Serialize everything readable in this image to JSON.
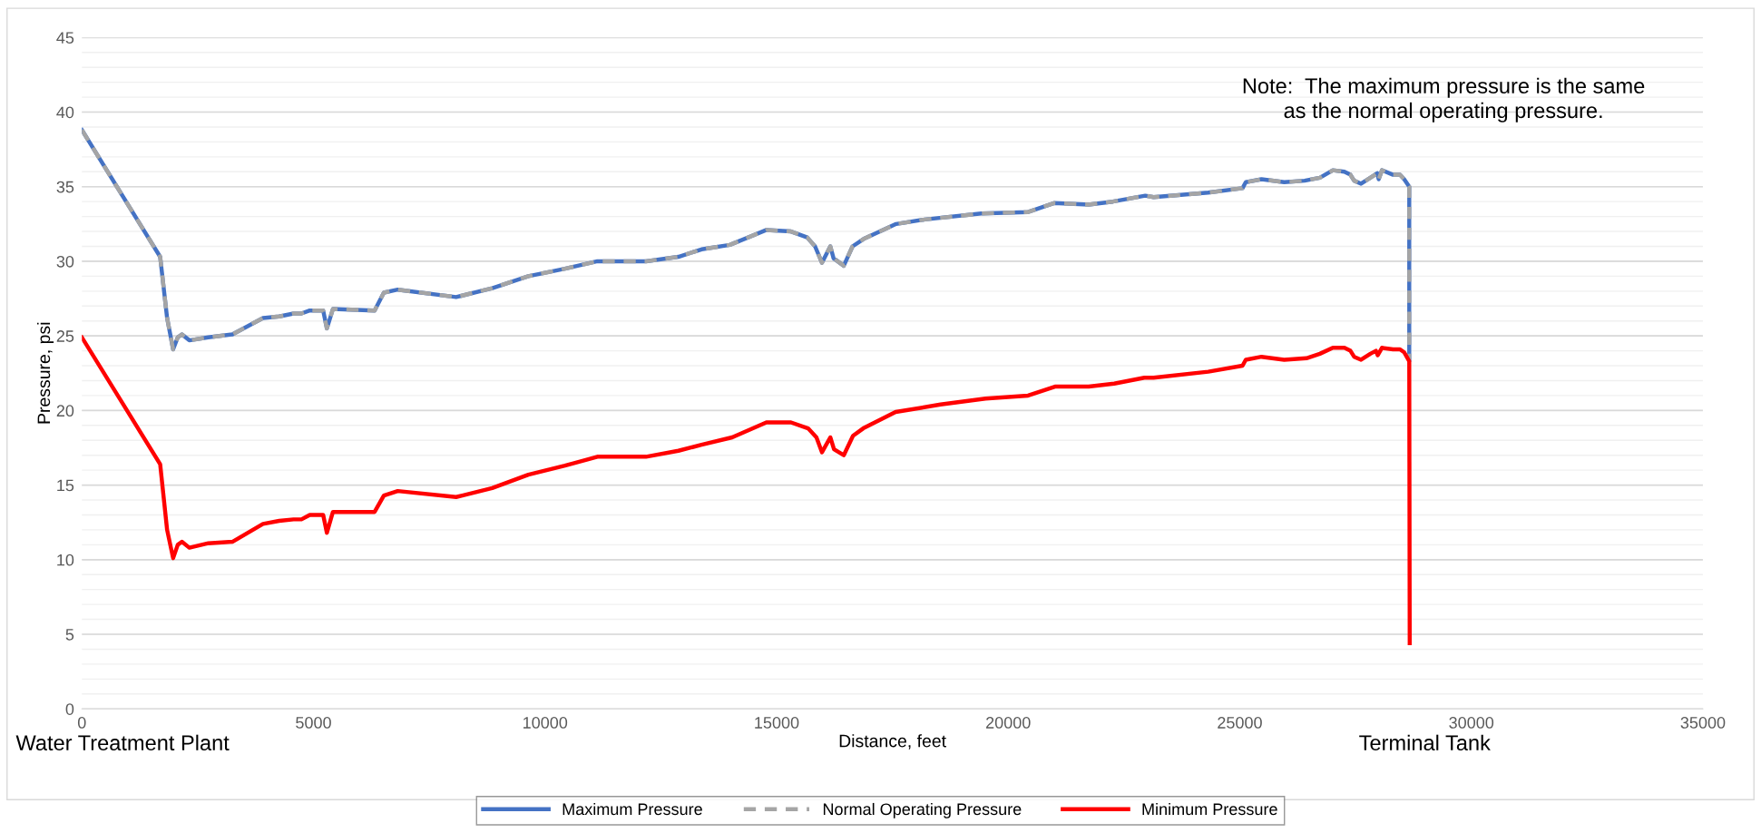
{
  "chart_data": {
    "type": "line",
    "xlabel": "Distance, feet",
    "ylabel": "Pressure, psi",
    "xlim": [
      0,
      35000
    ],
    "xticks": [
      0,
      5000,
      10000,
      15000,
      20000,
      25000,
      30000,
      35000
    ],
    "ylim": [
      0,
      45
    ],
    "yticks": [
      0,
      5,
      10,
      15,
      20,
      25,
      30,
      35,
      40,
      45
    ],
    "grid": "y",
    "legend": "bottom",
    "marker": "none",
    "annotations": [
      "Note:  The maximum pressure is the same\nas the normal operating pressure.",
      "Water Treatment Plant",
      "Terminal Tank"
    ],
    "series": [
      {
        "name": "Maximum Pressure",
        "color": "#4472c4",
        "line_style": "solid",
        "x": [
          0,
          1690,
          1840,
          1970,
          2070,
          2160,
          2320,
          2730,
          3250,
          3910,
          4260,
          4570,
          4740,
          4920,
          5210,
          5290,
          5420,
          6320,
          6520,
          6820,
          8080,
          8860,
          9640,
          10430,
          11130,
          12180,
          12880,
          13380,
          13990,
          14780,
          15310,
          15660,
          15830,
          15980,
          16160,
          16230,
          16450,
          16640,
          16880,
          17580,
          18200,
          19420,
          20430,
          20990,
          21740,
          22260,
          22960,
          23140,
          24320,
          25060,
          25130,
          25470,
          25960,
          26400,
          26730,
          27010,
          27260,
          27390,
          27470,
          27620,
          27820,
          27970,
          28000,
          28070,
          28310,
          28460,
          28550,
          28660,
          28660
        ],
        "values": [
          38.8,
          30.3,
          26.2,
          24.1,
          24.9,
          25.1,
          24.7,
          24.9,
          25.1,
          26.2,
          26.3,
          26.5,
          26.5,
          26.7,
          26.7,
          25.5,
          26.8,
          26.7,
          27.9,
          28.1,
          27.6,
          28.2,
          29.0,
          29.5,
          30.0,
          30.0,
          30.3,
          30.8,
          31.1,
          32.1,
          32.0,
          31.6,
          31.0,
          29.9,
          31.0,
          30.2,
          29.7,
          31.0,
          31.5,
          32.5,
          32.8,
          33.2,
          33.3,
          33.9,
          33.8,
          34.0,
          34.4,
          34.3,
          34.6,
          34.9,
          35.3,
          35.5,
          35.3,
          35.4,
          35.6,
          36.1,
          36.0,
          35.8,
          35.4,
          35.2,
          35.6,
          35.9,
          35.5,
          36.1,
          35.8,
          35.8,
          35.5,
          35.0,
          23.4
        ]
      },
      {
        "name": "Normal Operating Pressure",
        "color": "#a5a5a5",
        "line_style": "dashed",
        "x": [
          0,
          1690,
          1840,
          1970,
          2070,
          2160,
          2320,
          2730,
          3250,
          3910,
          4260,
          4570,
          4740,
          4920,
          5210,
          5290,
          5420,
          6320,
          6520,
          6820,
          8080,
          8860,
          9640,
          10430,
          11130,
          12180,
          12880,
          13380,
          13990,
          14780,
          15310,
          15660,
          15830,
          15980,
          16160,
          16230,
          16450,
          16640,
          16880,
          17580,
          18200,
          19420,
          20430,
          20990,
          21740,
          22260,
          22960,
          23140,
          24320,
          25060,
          25130,
          25470,
          25960,
          26400,
          26730,
          27010,
          27260,
          27390,
          27470,
          27620,
          27820,
          27970,
          28000,
          28070,
          28310,
          28460,
          28550,
          28660,
          28660
        ],
        "values": [
          38.8,
          30.3,
          26.2,
          24.1,
          24.9,
          25.1,
          24.7,
          24.9,
          25.1,
          26.2,
          26.3,
          26.5,
          26.5,
          26.7,
          26.7,
          25.5,
          26.8,
          26.7,
          27.9,
          28.1,
          27.6,
          28.2,
          29.0,
          29.5,
          30.0,
          30.0,
          30.3,
          30.8,
          31.1,
          32.1,
          32.0,
          31.6,
          31.0,
          29.9,
          31.0,
          30.2,
          29.7,
          31.0,
          31.5,
          32.5,
          32.8,
          33.2,
          33.3,
          33.9,
          33.8,
          34.0,
          34.4,
          34.3,
          34.6,
          34.9,
          35.3,
          35.5,
          35.3,
          35.4,
          35.6,
          36.1,
          36.0,
          35.8,
          35.4,
          35.2,
          35.6,
          35.9,
          35.5,
          36.1,
          35.8,
          35.8,
          35.5,
          35.0,
          23.4
        ]
      },
      {
        "name": "Minimum Pressure",
        "color": "#ff0000",
        "line_style": "solid",
        "x": [
          0,
          1690,
          1840,
          1970,
          2070,
          2160,
          2320,
          2730,
          3250,
          3910,
          4260,
          4570,
          4740,
          4920,
          5210,
          5290,
          5420,
          6320,
          6520,
          6820,
          8080,
          8860,
          9640,
          10430,
          11130,
          12180,
          12880,
          13380,
          14040,
          14780,
          15310,
          15680,
          15860,
          15980,
          16160,
          16240,
          16450,
          16650,
          16870,
          17570,
          18540,
          19510,
          20430,
          21010,
          21740,
          22290,
          22940,
          23140,
          24320,
          25060,
          25130,
          25470,
          25960,
          26440,
          26730,
          27010,
          27260,
          27390,
          27470,
          27620,
          27820,
          27940,
          27980,
          28070,
          28310,
          28460,
          28550,
          28660,
          28670
        ],
        "values": [
          24.9,
          16.4,
          12.0,
          10.1,
          11.0,
          11.2,
          10.8,
          11.1,
          11.2,
          12.4,
          12.6,
          12.7,
          12.7,
          13.0,
          13.0,
          11.8,
          13.2,
          13.2,
          14.3,
          14.6,
          14.2,
          14.8,
          15.7,
          16.3,
          16.9,
          16.9,
          17.3,
          17.7,
          18.2,
          19.2,
          19.2,
          18.8,
          18.2,
          17.2,
          18.2,
          17.4,
          17.0,
          18.3,
          18.8,
          19.9,
          20.4,
          20.8,
          21.0,
          21.6,
          21.6,
          21.8,
          22.2,
          22.2,
          22.6,
          23.0,
          23.4,
          23.6,
          23.4,
          23.5,
          23.8,
          24.2,
          24.2,
          24.0,
          23.6,
          23.4,
          23.8,
          24.0,
          23.7,
          24.2,
          24.1,
          24.1,
          23.9,
          23.3,
          4.4
        ]
      }
    ]
  }
}
